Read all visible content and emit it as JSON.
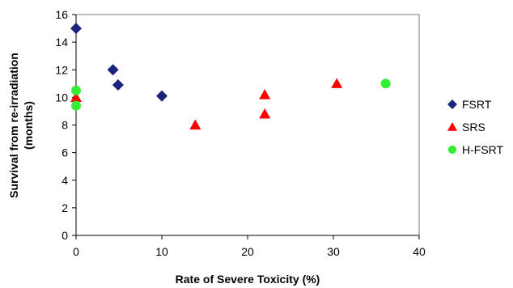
{
  "chart_data": {
    "type": "scatter",
    "title": "",
    "xlabel": "Rate of Severe Toxicity (%)",
    "ylabel_lines": [
      "Survival from re-irradiation",
      "(months)"
    ],
    "xlim": [
      0,
      40
    ],
    "ylim": [
      0,
      16
    ],
    "x_ticks": [
      0,
      10,
      20,
      30,
      40
    ],
    "y_ticks": [
      0,
      2,
      4,
      6,
      8,
      10,
      12,
      14,
      16
    ],
    "grid": false,
    "legend_position": "right",
    "series": [
      {
        "name": "FSRT",
        "marker": "diamond",
        "color": "#1a237e",
        "points": [
          [
            0,
            15
          ],
          [
            4.3,
            12
          ],
          [
            4.9,
            10.9
          ],
          [
            10,
            10.1
          ]
        ]
      },
      {
        "name": "SRS",
        "marker": "triangle",
        "color": "#ff0000",
        "points": [
          [
            0,
            10
          ],
          [
            13.9,
            8
          ],
          [
            22,
            8.8
          ],
          [
            22,
            10.2
          ],
          [
            30.4,
            11
          ]
        ]
      },
      {
        "name": "H-FSRT",
        "marker": "circle",
        "color": "#33ee33",
        "points": [
          [
            0,
            10.5
          ],
          [
            0,
            9.4
          ],
          [
            36.1,
            11
          ]
        ]
      }
    ]
  }
}
